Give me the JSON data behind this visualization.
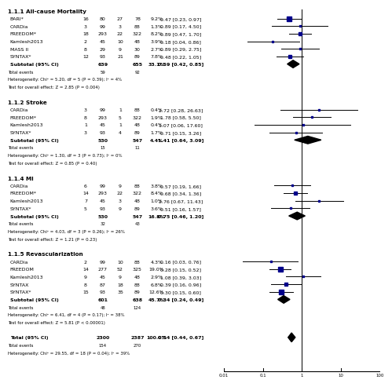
{
  "sections": [
    {
      "header": "1.1.1 All-cause Mortality",
      "studies": [
        {
          "name": "BARI*",
          "e1": 16,
          "n1": 80,
          "e2": 27,
          "n2": 78,
          "weight": "9.2%",
          "or": 0.47,
          "ci_lo": 0.23,
          "ci_hi": 0.97
        },
        {
          "name": "CARDia",
          "e1": 3,
          "n1": 99,
          "e2": 3,
          "n2": 88,
          "weight": "1.3%",
          "or": 0.89,
          "ci_lo": 0.17,
          "ci_hi": 4.5
        },
        {
          "name": "FREEDOM*",
          "e1": 18,
          "n1": 293,
          "e2": 22,
          "n2": 322,
          "weight": "8.2%",
          "or": 0.89,
          "ci_lo": 0.47,
          "ci_hi": 1.7
        },
        {
          "name": "Kamlesh2013",
          "e1": 2,
          "n1": 45,
          "e2": 10,
          "n2": 48,
          "weight": "3.9%",
          "or": 0.18,
          "ci_lo": 0.04,
          "ci_hi": 0.86
        },
        {
          "name": "MASS II",
          "e1": 8,
          "n1": 29,
          "e2": 9,
          "n2": 30,
          "weight": "2.7%",
          "or": 0.89,
          "ci_lo": 0.29,
          "ci_hi": 2.75
        },
        {
          "name": "SYNTAX*",
          "e1": 12,
          "n1": 93,
          "e2": 21,
          "n2": 89,
          "weight": "7.8%",
          "or": 0.48,
          "ci_lo": 0.22,
          "ci_hi": 1.05
        }
      ],
      "subtotal": {
        "n1": 639,
        "n2": 655,
        "weight": "33.1%",
        "or": 0.59,
        "ci_lo": 0.42,
        "ci_hi": 0.85
      },
      "total_events": [
        59,
        92
      ],
      "het_text": "Heterogeneity: Chi² = 5.20, df = 5 (P = 0.39); I² = 4%",
      "effect_text": "Test for overall effect: Z = 2.85 (P = 0.004)"
    },
    {
      "header": "1.1.2 Stroke",
      "studies": [
        {
          "name": "CARDia",
          "e1": 3,
          "n1": 99,
          "e2": 1,
          "n2": 88,
          "weight": "0.4%",
          "or": 2.72,
          "ci_lo": 0.28,
          "ci_hi": 26.63
        },
        {
          "name": "FREEDOM*",
          "e1": 8,
          "n1": 293,
          "e2": 5,
          "n2": 322,
          "weight": "1.9%",
          "or": 1.78,
          "ci_lo": 0.58,
          "ci_hi": 5.5
        },
        {
          "name": "Kamlesh2013",
          "e1": 1,
          "n1": 45,
          "e2": 1,
          "n2": 48,
          "weight": "0.4%",
          "or": 1.07,
          "ci_lo": 0.06,
          "ci_hi": 17.6
        },
        {
          "name": "SYNTAX*",
          "e1": 3,
          "n1": 93,
          "e2": 4,
          "n2": 89,
          "weight": "1.7%",
          "or": 0.71,
          "ci_lo": 0.15,
          "ci_hi": 3.26
        }
      ],
      "subtotal": {
        "n1": 530,
        "n2": 547,
        "weight": "4.4%",
        "or": 1.41,
        "ci_lo": 0.64,
        "ci_hi": 3.09
      },
      "total_events": [
        15,
        11
      ],
      "het_text": "Heterogeneity: Chi² = 1.30, df = 3 (P = 0.73); I² = 0%",
      "effect_text": "Test for overall effect: Z = 0.85 (P = 0.40)"
    },
    {
      "header": "1.1.4 MI",
      "studies": [
        {
          "name": "CARDia",
          "e1": 6,
          "n1": 99,
          "e2": 9,
          "n2": 88,
          "weight": "3.8%",
          "or": 0.57,
          "ci_lo": 0.19,
          "ci_hi": 1.66
        },
        {
          "name": "FREEDOM*",
          "e1": 14,
          "n1": 293,
          "e2": 22,
          "n2": 322,
          "weight": "8.4%",
          "or": 0.68,
          "ci_lo": 0.34,
          "ci_hi": 1.36
        },
        {
          "name": "Kamlesh2013",
          "e1": 7,
          "n1": 45,
          "e2": 3,
          "n2": 48,
          "weight": "1.0%",
          "or": 2.76,
          "ci_lo": 0.67,
          "ci_hi": 11.43
        },
        {
          "name": "SYNTAX*",
          "e1": 5,
          "n1": 93,
          "e2": 9,
          "n2": 89,
          "weight": "3.6%",
          "or": 0.51,
          "ci_lo": 0.16,
          "ci_hi": 1.57
        }
      ],
      "subtotal": {
        "n1": 530,
        "n2": 547,
        "weight": "16.8%",
        "or": 0.75,
        "ci_lo": 0.46,
        "ci_hi": 1.2
      },
      "total_events": [
        32,
        43
      ],
      "het_text": "Heterogeneity: Chi² = 4.03, df = 3 (P = 0.26); I² = 26%",
      "effect_text": "Test for overall effect: Z = 1.21 (P = 0.23)"
    },
    {
      "header": "1.1.5 Revascularization",
      "studies": [
        {
          "name": "CARDia",
          "e1": 2,
          "n1": 99,
          "e2": 10,
          "n2": 88,
          "weight": "4.3%",
          "or": 0.16,
          "ci_lo": 0.03,
          "ci_hi": 0.76
        },
        {
          "name": "FREEDOM",
          "e1": 14,
          "n1": 277,
          "e2": 52,
          "n2": 325,
          "weight": "19.0%",
          "or": 0.28,
          "ci_lo": 0.15,
          "ci_hi": 0.52
        },
        {
          "name": "Kamlesh2013",
          "e1": 9,
          "n1": 45,
          "e2": 9,
          "n2": 48,
          "weight": "2.9%",
          "or": 1.08,
          "ci_lo": 0.39,
          "ci_hi": 3.03
        },
        {
          "name": "SYNTAX",
          "e1": 8,
          "n1": 87,
          "e2": 18,
          "n2": 88,
          "weight": "6.8%",
          "or": 0.39,
          "ci_lo": 0.16,
          "ci_hi": 0.96
        },
        {
          "name": "SYNTAX*",
          "e1": 15,
          "n1": 93,
          "e2": 35,
          "n2": 89,
          "weight": "12.6%",
          "or": 0.3,
          "ci_lo": 0.15,
          "ci_hi": 0.6
        }
      ],
      "subtotal": {
        "n1": 601,
        "n2": 638,
        "weight": "45.7%",
        "or": 0.34,
        "ci_lo": 0.24,
        "ci_hi": 0.49
      },
      "total_events": [
        48,
        124
      ],
      "het_text": "Heterogeneity: Chi² = 6.41, df = 4 (P = 0.17); I² = 38%",
      "effect_text": "Test for overall effect: Z = 5.81 (P < 0.00001)"
    }
  ],
  "total": {
    "n1": 2300,
    "n2": 2387,
    "weight": "100.0%",
    "or": 0.54,
    "ci_lo": 0.44,
    "ci_hi": 0.67
  },
  "total_events": [
    154,
    270
  ],
  "total_het": "Heterogeneity: Chi² = 29.55, df = 18 (P = 0.04); I² = 39%",
  "xaxis_ticks": [
    0.01,
    0.1,
    1,
    10,
    100
  ],
  "xaxis_labels": [
    "0.01",
    "0.1",
    "1",
    "10",
    "100"
  ],
  "study_color": "#00008B",
  "ci_line_color": "#000000",
  "text_color": "#000000",
  "bg_color": "#ffffff"
}
